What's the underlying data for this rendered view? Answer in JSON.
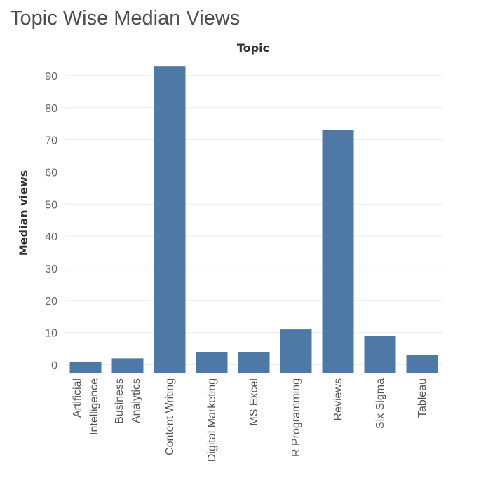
{
  "chart_data": {
    "type": "bar",
    "title": "Topic Wise Median Views",
    "xlabel": "Topic",
    "ylabel": "Median views",
    "categories": [
      [
        "Artificial",
        "Intelligence"
      ],
      [
        "Business",
        "Analytics"
      ],
      [
        "Content Writing"
      ],
      [
        "Digital Marketing"
      ],
      [
        "MS Excel"
      ],
      [
        "R Programming"
      ],
      [
        "Reviews"
      ],
      [
        "Six Sigma"
      ],
      [
        "Tableau"
      ]
    ],
    "values": [
      1,
      2,
      93,
      4,
      4,
      11,
      73,
      9,
      3
    ],
    "ylim": [
      -2.5,
      95
    ],
    "yticks": [
      0,
      10,
      20,
      30,
      40,
      50,
      60,
      70,
      80,
      90
    ],
    "grid": true,
    "bar_color": "#4e79a7"
  }
}
